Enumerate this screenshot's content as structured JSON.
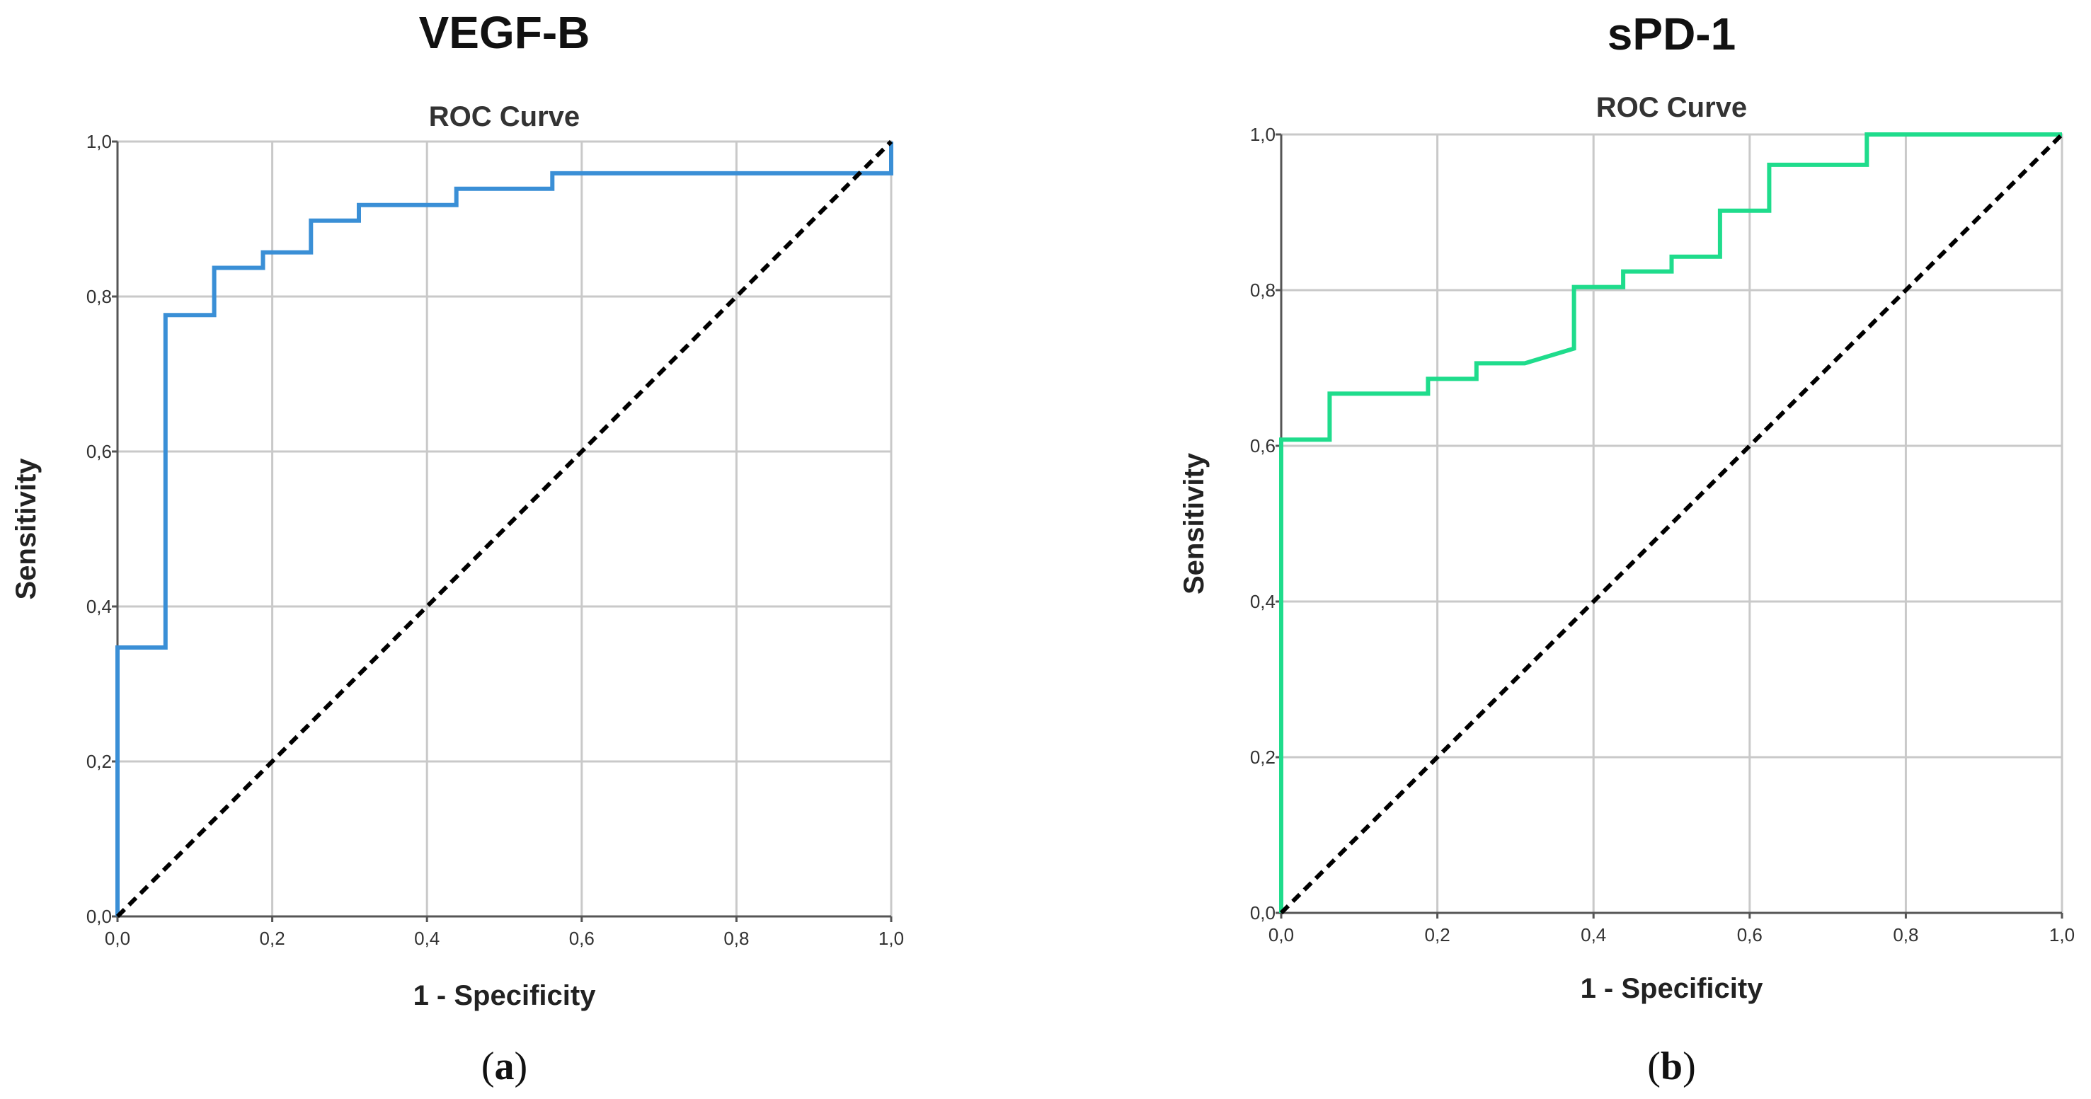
{
  "chart_data": [
    {
      "type": "line",
      "panel_label": "a",
      "main_title": "VEGF-B",
      "title": "ROC Curve",
      "xlabel": "1 - Specificity",
      "ylabel": "Sensitivity",
      "xlim": [
        0,
        1
      ],
      "ylim": [
        0,
        1
      ],
      "grid": true,
      "ticks": [
        "0,0",
        "0,2",
        "0,4",
        "0,6",
        "0,8",
        "1,0"
      ],
      "series": [
        {
          "name": "VEGF-B",
          "color": "#3a8fd6",
          "x": [
            0,
            0,
            0.062,
            0.062,
            0.125,
            0.125,
            0.188,
            0.188,
            0.25,
            0.25,
            0.312,
            0.312,
            0.438,
            0.438,
            0.562,
            0.562,
            1.0,
            1.0
          ],
          "y": [
            0,
            0.347,
            0.347,
            0.776,
            0.776,
            0.837,
            0.837,
            0.857,
            0.857,
            0.898,
            0.898,
            0.918,
            0.918,
            0.939,
            0.939,
            0.959,
            0.959,
            1.0
          ]
        },
        {
          "name": "Reference Line",
          "color": "#000000",
          "x": [
            0,
            1
          ],
          "y": [
            0,
            1
          ]
        }
      ]
    },
    {
      "type": "line",
      "panel_label": "b",
      "main_title": "sPD-1",
      "title": "ROC Curve",
      "xlabel": "1 - Specificity",
      "ylabel": "Sensitivity",
      "xlim": [
        0,
        1
      ],
      "ylim": [
        0,
        1
      ],
      "grid": true,
      "ticks": [
        "0,0",
        "0,2",
        "0,4",
        "0,6",
        "0,8",
        "1,0"
      ],
      "series": [
        {
          "name": "sPD-1",
          "color": "#1fdc8c",
          "x": [
            0,
            0,
            0.062,
            0.062,
            0.188,
            0.188,
            0.25,
            0.25,
            0.312,
            0.375,
            0.375,
            0.438,
            0.438,
            0.5,
            0.5,
            0.562,
            0.562,
            0.625,
            0.625,
            0.75,
            0.75,
            1.0
          ],
          "y": [
            0,
            0.608,
            0.608,
            0.667,
            0.667,
            0.686,
            0.686,
            0.706,
            0.706,
            0.725,
            0.804,
            0.804,
            0.824,
            0.824,
            0.843,
            0.843,
            0.902,
            0.902,
            0.961,
            0.961,
            1.0,
            1.0
          ]
        },
        {
          "name": "Reference Line",
          "color": "#000000",
          "x": [
            0,
            1
          ],
          "y": [
            0,
            1
          ]
        }
      ]
    }
  ]
}
